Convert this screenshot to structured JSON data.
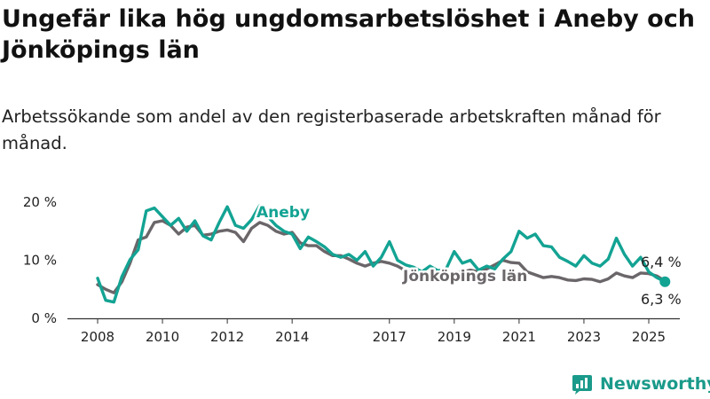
{
  "title": "Ungefär lika hög ungdomsarbetslöshet i Aneby och Jönköpings län",
  "subtitle": "Arbetssökande som andel av den registerbaserade arbetskraften månad för månad.",
  "brand": "Newsworthy",
  "colors": {
    "aneby": "#13a393",
    "lan": "#6a6669",
    "axis": "#333333"
  },
  "chart_data": {
    "type": "line",
    "x_ticks": [
      "2008",
      "2010",
      "2012",
      "2014",
      "2017",
      "2019",
      "2021",
      "2023",
      "2025"
    ],
    "y_ticks": [
      "0 %",
      "10 %",
      "20 %"
    ],
    "ylim": [
      0,
      20
    ],
    "xlim": [
      "2008-01",
      "2025-07"
    ],
    "grid": false,
    "series": [
      {
        "name": "Aneby",
        "label": "Aneby",
        "end_label": "6,3 %",
        "x": [
          "2008-01",
          "2008-04",
          "2008-07",
          "2008-10",
          "2009-01",
          "2009-04",
          "2009-07",
          "2009-10",
          "2010-01",
          "2010-04",
          "2010-07",
          "2010-10",
          "2011-01",
          "2011-04",
          "2011-07",
          "2011-10",
          "2012-01",
          "2012-04",
          "2012-07",
          "2012-10",
          "2013-01",
          "2013-04",
          "2013-07",
          "2013-10",
          "2014-01",
          "2014-04",
          "2014-07",
          "2014-10",
          "2015-01",
          "2015-04",
          "2015-07",
          "2015-10",
          "2016-01",
          "2016-04",
          "2016-07",
          "2016-10",
          "2017-01",
          "2017-04",
          "2017-07",
          "2017-10",
          "2018-01",
          "2018-04",
          "2018-07",
          "2018-10",
          "2019-01",
          "2019-04",
          "2019-07",
          "2019-10",
          "2020-01",
          "2020-04",
          "2020-07",
          "2020-10",
          "2021-01",
          "2021-04",
          "2021-07",
          "2021-10",
          "2022-01",
          "2022-04",
          "2022-07",
          "2022-10",
          "2023-01",
          "2023-04",
          "2023-07",
          "2023-10",
          "2024-01",
          "2024-04",
          "2024-07",
          "2024-10",
          "2025-01",
          "2025-04",
          "2025-07"
        ],
        "values": [
          6.9,
          3.1,
          2.8,
          7.2,
          10.1,
          11.8,
          18.5,
          19.0,
          17.5,
          16.0,
          17.2,
          15.0,
          16.8,
          14.2,
          13.5,
          16.5,
          19.2,
          16.0,
          15.5,
          17.0,
          19.4,
          17.5,
          16.0,
          15.0,
          14.5,
          12.0,
          14.0,
          13.2,
          12.3,
          11.0,
          10.5,
          11.0,
          10.0,
          11.5,
          9.0,
          10.5,
          13.2,
          10.0,
          9.2,
          8.8,
          8.0,
          9.0,
          8.2,
          8.5,
          11.5,
          9.5,
          10.0,
          8.3,
          9.0,
          8.5,
          10.2,
          11.5,
          15.0,
          13.8,
          14.5,
          12.5,
          12.3,
          10.5,
          9.8,
          9.0,
          10.8,
          9.5,
          9.0,
          10.2,
          13.8,
          11.0,
          9.0,
          10.5,
          8.0,
          7.0,
          6.3
        ]
      },
      {
        "name": "Jönköpings län",
        "label": "Jönköpings län",
        "end_label": "6,4 %",
        "x": [
          "2008-01",
          "2008-04",
          "2008-07",
          "2008-10",
          "2009-01",
          "2009-04",
          "2009-07",
          "2009-10",
          "2010-01",
          "2010-04",
          "2010-07",
          "2010-10",
          "2011-01",
          "2011-04",
          "2011-07",
          "2011-10",
          "2012-01",
          "2012-04",
          "2012-07",
          "2012-10",
          "2013-01",
          "2013-04",
          "2013-07",
          "2013-10",
          "2014-01",
          "2014-04",
          "2014-07",
          "2014-10",
          "2015-01",
          "2015-04",
          "2015-07",
          "2015-10",
          "2016-01",
          "2016-04",
          "2016-07",
          "2016-10",
          "2017-01",
          "2017-04",
          "2017-07",
          "2017-10",
          "2018-01",
          "2018-04",
          "2018-07",
          "2018-10",
          "2019-01",
          "2019-04",
          "2019-07",
          "2019-10",
          "2020-01",
          "2020-04",
          "2020-07",
          "2020-10",
          "2021-01",
          "2021-04",
          "2021-07",
          "2021-10",
          "2022-01",
          "2022-04",
          "2022-07",
          "2022-10",
          "2023-01",
          "2023-04",
          "2023-07",
          "2023-10",
          "2024-01",
          "2024-04",
          "2024-07",
          "2024-10",
          "2025-01",
          "2025-04",
          "2025-07"
        ],
        "values": [
          5.8,
          5.0,
          4.4,
          6.3,
          9.5,
          13.5,
          14.0,
          16.5,
          16.8,
          16.0,
          14.5,
          15.7,
          16.0,
          14.3,
          14.5,
          15.0,
          15.2,
          14.8,
          13.2,
          15.5,
          16.5,
          16.0,
          15.0,
          14.5,
          14.8,
          13.0,
          12.5,
          12.5,
          11.5,
          10.8,
          10.8,
          10.2,
          9.5,
          9.0,
          9.5,
          9.8,
          9.5,
          9.0,
          8.2,
          8.0,
          7.7,
          7.8,
          7.5,
          7.7,
          7.8,
          8.0,
          8.3,
          8.0,
          8.5,
          9.2,
          10.0,
          9.6,
          9.5,
          8.0,
          7.5,
          7.0,
          7.2,
          7.0,
          6.6,
          6.5,
          6.8,
          6.7,
          6.3,
          6.8,
          7.8,
          7.3,
          7.0,
          7.8,
          7.7,
          7.3,
          6.4
        ]
      }
    ]
  }
}
